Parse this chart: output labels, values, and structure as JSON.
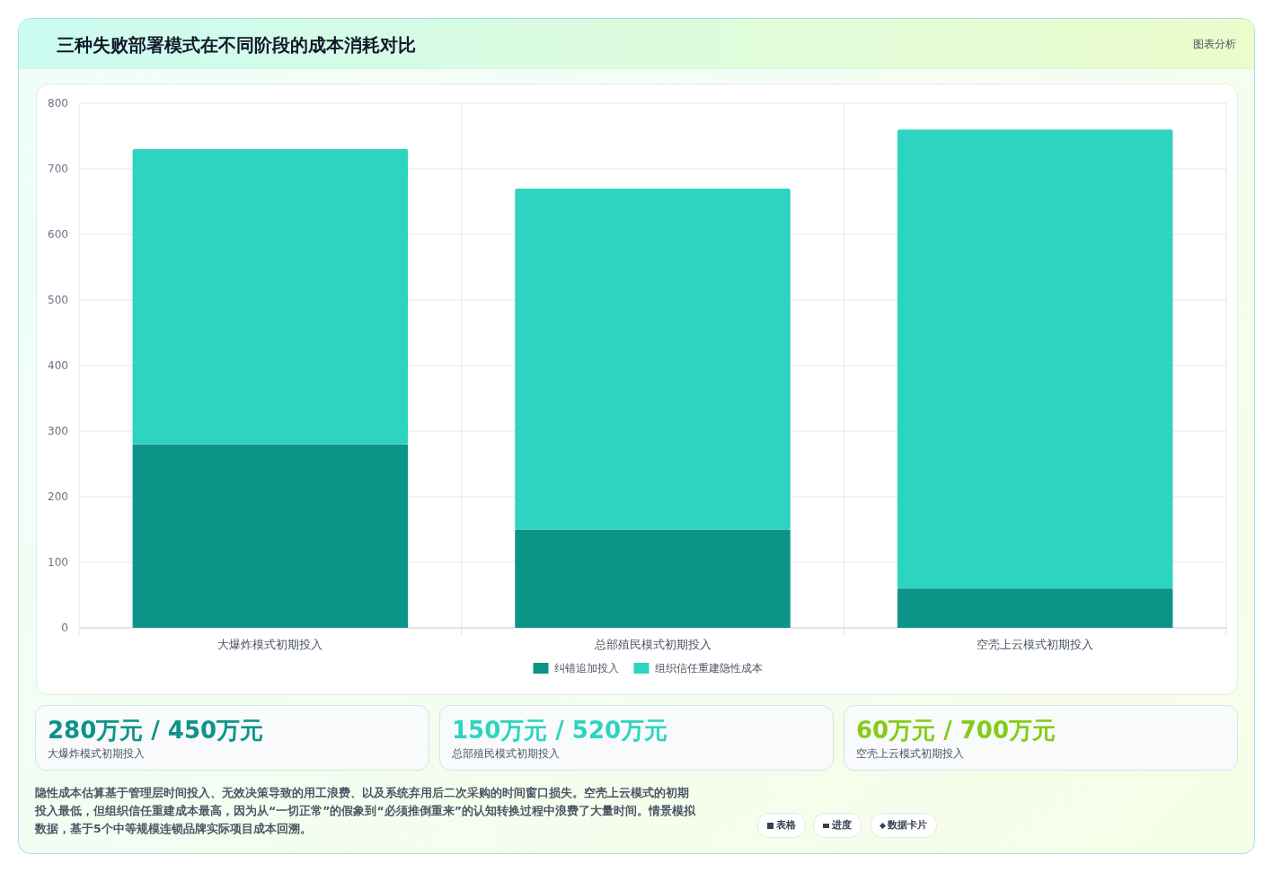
{
  "chart_data": {
    "type": "bar",
    "title": "三种失败部署模式在不同阶段的成本消耗对比",
    "stacked": true,
    "categories": [
      "大爆炸模式初期投入",
      "总部殖民模式初期投入",
      "空壳上云模式初期投入"
    ],
    "series": [
      {
        "name": "纠错追加投入",
        "color": "#0d9488",
        "values": [
          280,
          150,
          60
        ]
      },
      {
        "name": "组织信任重建隐性成本",
        "color": "#2dd4bf",
        "values": [
          450,
          520,
          700
        ]
      }
    ],
    "ylim": [
      0,
      800
    ],
    "yticks": [
      0,
      100,
      200,
      300,
      400,
      500,
      600,
      700,
      800
    ],
    "grid": true,
    "legend": "bottom",
    "annotations": [
      "图表分析",
      "280万元 / 450万元",
      "大爆炸模式初期投入",
      "150万元 / 520万元",
      "总部殖民模式初期投入",
      "60万元 / 700万元",
      "空壳上云模式初期投入",
      "隐性成本估算基于管理层时间投入、无效决策导致的用工浪费、以及系统弃用后二次采购的时间窗口损失。空壳上云模式的初期投入最低，但组织信任重建成本最高，因为从“一切正常”的假象到“必须推倒重来”的认知转换过程中浪费了大量时间。情景模拟数据，基于5个中等规模连锁品牌实际项目成本回溯。",
      "表格",
      "进度",
      "数据卡片"
    ]
  }
}
